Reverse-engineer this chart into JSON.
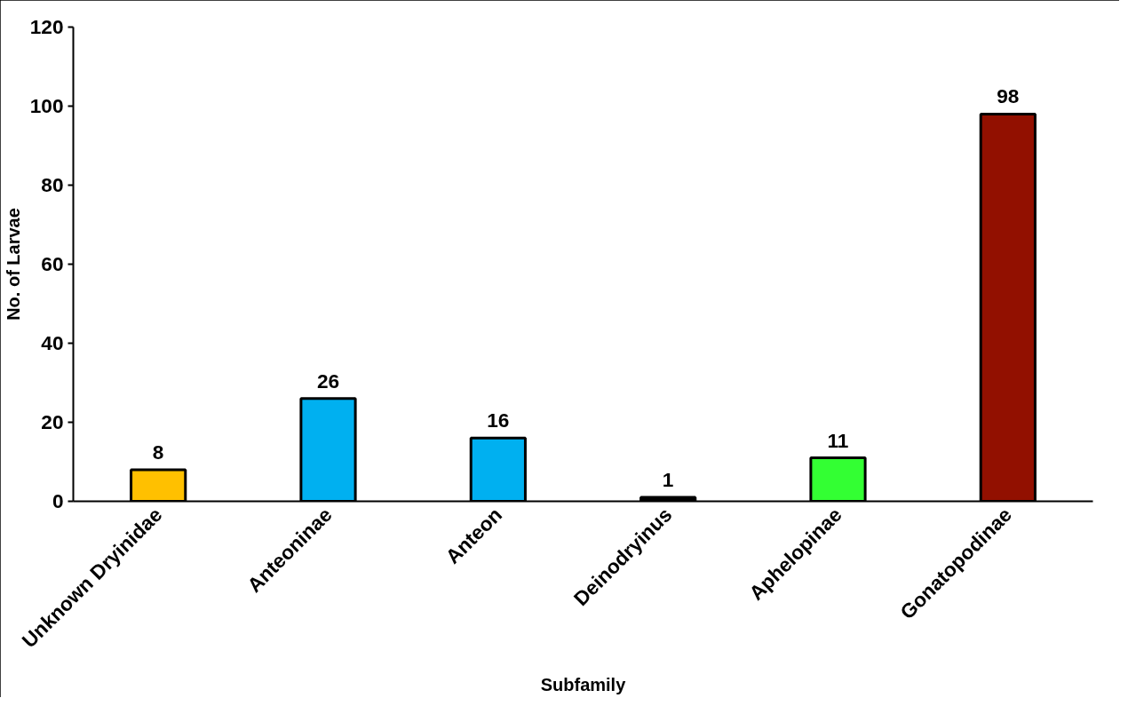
{
  "chart_data": {
    "type": "bar",
    "xlabel": "Subfamily",
    "ylabel": "No. of Larvae",
    "categories": [
      "Unknown Dryinidae",
      "Anteoninae",
      "Anteon",
      "Deinodryinus",
      "Aphelopinae",
      "Gonatopodinae"
    ],
    "values": [
      8,
      26,
      16,
      1,
      11,
      98
    ],
    "colors": [
      "#ffc000",
      "#00b0f0",
      "#00b0f0",
      "#000000",
      "#33ff33",
      "#921000"
    ],
    "ylim": [
      0,
      120
    ],
    "yticks": [
      0,
      20,
      40,
      60,
      80,
      100,
      120
    ],
    "grid": false,
    "data_labels": true
  }
}
